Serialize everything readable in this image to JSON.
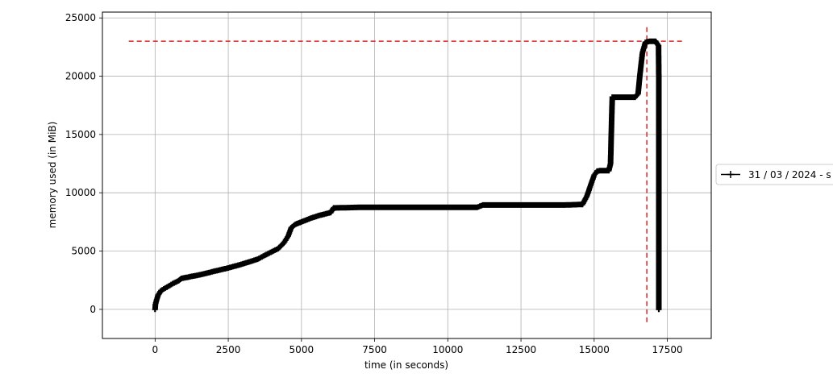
{
  "chart_data": {
    "type": "line",
    "xlabel": "time (in seconds)",
    "ylabel": "memory used (in MiB)",
    "xlim": [
      -1800,
      19000
    ],
    "ylim": [
      -2500,
      25500
    ],
    "xticks": [
      0,
      2500,
      5000,
      7500,
      10000,
      12500,
      15000,
      17500
    ],
    "yticks": [
      0,
      5000,
      10000,
      15000,
      20000,
      25000
    ],
    "grid": true,
    "legend_position": "right",
    "series": [
      {
        "name": "31 / 03 / 2024 - s",
        "color": "#000000",
        "marker": "+",
        "points": [
          [
            0,
            0
          ],
          [
            10,
            400
          ],
          [
            50,
            800
          ],
          [
            100,
            1200
          ],
          [
            200,
            1600
          ],
          [
            400,
            1900
          ],
          [
            600,
            2200
          ],
          [
            800,
            2450
          ],
          [
            900,
            2650
          ],
          [
            1200,
            2800
          ],
          [
            1600,
            3000
          ],
          [
            2000,
            3250
          ],
          [
            2500,
            3550
          ],
          [
            3000,
            3900
          ],
          [
            3500,
            4300
          ],
          [
            3800,
            4700
          ],
          [
            4200,
            5200
          ],
          [
            4400,
            5700
          ],
          [
            4550,
            6300
          ],
          [
            4650,
            7000
          ],
          [
            4800,
            7300
          ],
          [
            5000,
            7500
          ],
          [
            5300,
            7800
          ],
          [
            5600,
            8050
          ],
          [
            6000,
            8300
          ],
          [
            6100,
            8700
          ],
          [
            7000,
            8750
          ],
          [
            8000,
            8750
          ],
          [
            9000,
            8750
          ],
          [
            10000,
            8750
          ],
          [
            11000,
            8750
          ],
          [
            11200,
            8950
          ],
          [
            12000,
            8950
          ],
          [
            13000,
            8950
          ],
          [
            14000,
            8950
          ],
          [
            14600,
            9000
          ],
          [
            14750,
            9700
          ],
          [
            14900,
            10800
          ],
          [
            15000,
            11500
          ],
          [
            15100,
            11850
          ],
          [
            15200,
            11900
          ],
          [
            15500,
            11900
          ],
          [
            15560,
            12500
          ],
          [
            15600,
            16500
          ],
          [
            15620,
            18200
          ],
          [
            16000,
            18200
          ],
          [
            16400,
            18200
          ],
          [
            16500,
            18500
          ],
          [
            16580,
            20500
          ],
          [
            16650,
            22000
          ],
          [
            16750,
            22900
          ],
          [
            16900,
            23000
          ],
          [
            17100,
            23000
          ],
          [
            17200,
            22600
          ],
          [
            17210,
            19500
          ],
          [
            17210,
            15000
          ],
          [
            17210,
            10000
          ],
          [
            17210,
            6000
          ],
          [
            17210,
            3900
          ],
          [
            17210,
            0
          ]
        ]
      }
    ],
    "reference_lines": [
      {
        "orientation": "horizontal",
        "y": 23000,
        "x_from": -900,
        "x_to": 18100,
        "color": "#d62728",
        "style": "dashed"
      },
      {
        "orientation": "vertical",
        "x": 16800,
        "y_from": -1100,
        "y_to": 24200,
        "color": "#d62728",
        "style": "dashed"
      }
    ]
  }
}
